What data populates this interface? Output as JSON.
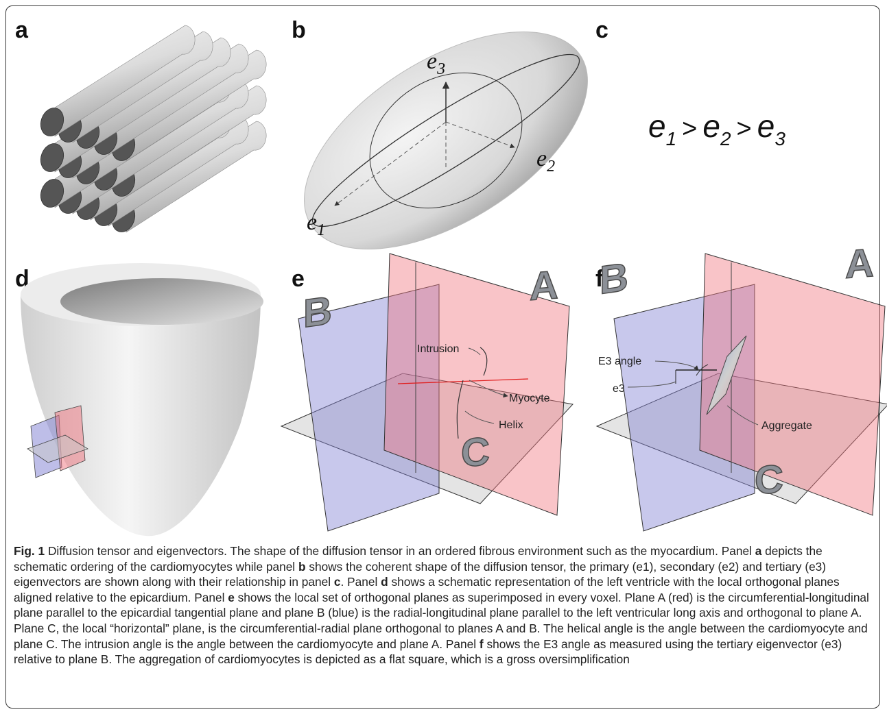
{
  "panel_labels": [
    "a",
    "b",
    "c",
    "d",
    "e",
    "f"
  ],
  "panel_b": {
    "axes": [
      {
        "base": "e",
        "sub": "3"
      },
      {
        "base": "e",
        "sub": "2"
      },
      {
        "base": "e",
        "sub": "1"
      }
    ]
  },
  "panel_c": {
    "terms": [
      {
        "base": "e",
        "sub": "1"
      },
      {
        "base": "e",
        "sub": "2"
      },
      {
        "base": "e",
        "sub": "3"
      }
    ],
    "operators": [
      ">",
      ">"
    ]
  },
  "panel_e": {
    "planes": [
      "A",
      "B",
      "C"
    ],
    "annotations": [
      "Intrusion",
      "Myocyte",
      "Helix"
    ]
  },
  "panel_f": {
    "planes": [
      "A",
      "B",
      "C"
    ],
    "annotations": [
      "E3 angle",
      "e3",
      "Aggregate"
    ]
  },
  "caption": {
    "runs": [
      {
        "text": "Fig. 1",
        "bold": true
      },
      {
        "text": " Diffusion tensor and eigenvectors. The shape of the diffusion tensor in an ordered fibrous environment such as the myocardium. Panel "
      },
      {
        "text": "a",
        "bold": true
      },
      {
        "text": " depicts the schematic ordering of the cardiomyocytes while panel "
      },
      {
        "text": "b",
        "bold": true
      },
      {
        "text": " shows the coherent shape of the diffusion tensor, the primary (e1), secondary (e2) and tertiary (e3) eigenvectors are shown along with their relationship in panel "
      },
      {
        "text": "c",
        "bold": true
      },
      {
        "text": ". Panel "
      },
      {
        "text": "d",
        "bold": true
      },
      {
        "text": " shows a schematic representation of the left ventricle with the local orthogonal planes aligned relative to the epicardium. Panel "
      },
      {
        "text": "e",
        "bold": true
      },
      {
        "text": " shows the local set of orthogonal planes as superimposed in every voxel. Plane A (red) is the circumferential-longitudinal plane parallel to the epicardial tangential plane and plane B (blue) is the radial-longitudinal plane parallel to the left ventricular long axis and orthogonal to plane A. Plane C, the local “horizontal” plane, is the circumferential-radial plane orthogonal to planes A and B. The helical angle is the angle between the cardiomyocyte and plane C. The intrusion angle is the angle between the cardiomyocyte and plane A. Panel "
      },
      {
        "text": "f",
        "bold": true
      },
      {
        "text": " shows the E3 angle as measured using the tertiary eigenvector (e3) relative to plane B. The aggregation of cardiomyocytes is depicted as a flat square, which is a gross oversimplification"
      }
    ]
  }
}
